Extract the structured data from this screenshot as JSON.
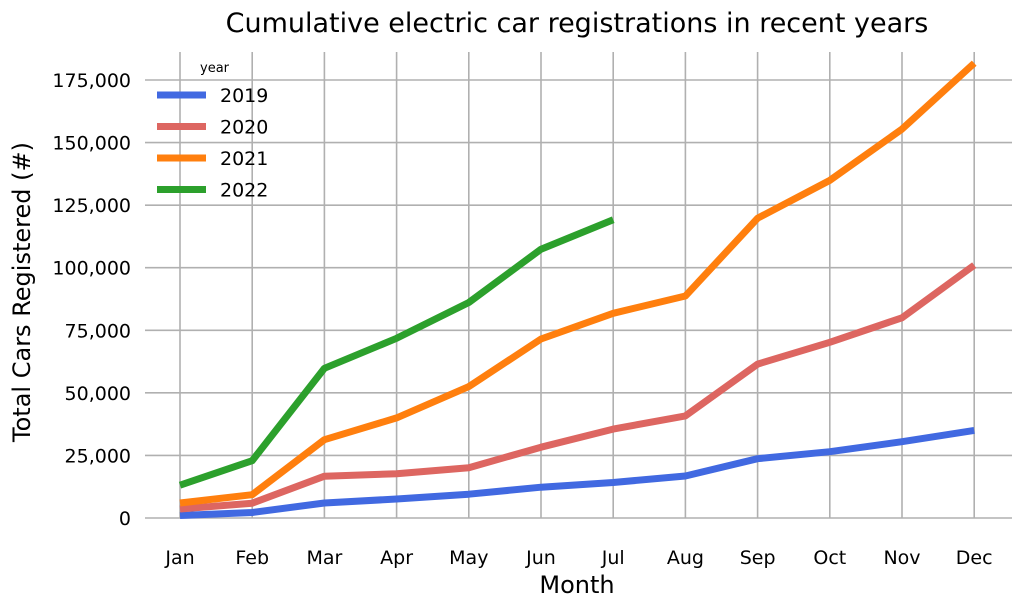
{
  "chart_data": {
    "type": "line",
    "title": "Cumulative electric car registrations in recent years",
    "xlabel": "Month",
    "ylabel": "Total Cars Registered (#)",
    "categories": [
      "Jan",
      "Feb",
      "Mar",
      "Apr",
      "May",
      "Jun",
      "Jul",
      "Aug",
      "Sep",
      "Oct",
      "Nov",
      "Dec"
    ],
    "ylim": [
      0,
      185000
    ],
    "yticks": [
      0,
      25000,
      50000,
      75000,
      100000,
      125000,
      150000,
      175000
    ],
    "ytick_labels": [
      "0",
      "25,000",
      "50,000",
      "75,000",
      "100,000",
      "125,000",
      "150,000",
      "175,000"
    ],
    "grid": true,
    "legend": {
      "title": "year",
      "position": "top-left"
    },
    "series": [
      {
        "name": "2019",
        "color": "#4169e1",
        "values": [
          1000,
          2200,
          6000,
          7600,
          9500,
          12300,
          14200,
          16800,
          23700,
          26500,
          30500,
          35000
        ]
      },
      {
        "name": "2020",
        "color": "#dd6661",
        "values": [
          3600,
          5900,
          16700,
          17700,
          20100,
          28300,
          35500,
          40800,
          61500,
          70200,
          80000,
          101000
        ]
      },
      {
        "name": "2021",
        "color": "#ff7f0e",
        "values": [
          6000,
          9300,
          31300,
          40000,
          52500,
          71500,
          81800,
          88700,
          119800,
          134900,
          155400,
          181700
        ]
      },
      {
        "name": "2022",
        "color": "#2ca02c",
        "values": [
          13100,
          22900,
          59800,
          71800,
          86100,
          107400,
          119200,
          null,
          null,
          null,
          null,
          null
        ]
      }
    ]
  }
}
